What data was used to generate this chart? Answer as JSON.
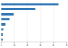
{
  "values": [
    43.5,
    26.0,
    9.5,
    6.5,
    3.2,
    1.5,
    1.2,
    1.0
  ],
  "bar_color": "#2e75b6",
  "background_color": "#ffffff",
  "xlim": [
    0,
    50
  ],
  "bar_height": 0.45,
  "xticks": [
    0,
    10,
    20,
    30,
    40,
    50
  ],
  "xtick_labels": [
    "0",
    "10",
    "20",
    "30",
    "40",
    "50"
  ]
}
